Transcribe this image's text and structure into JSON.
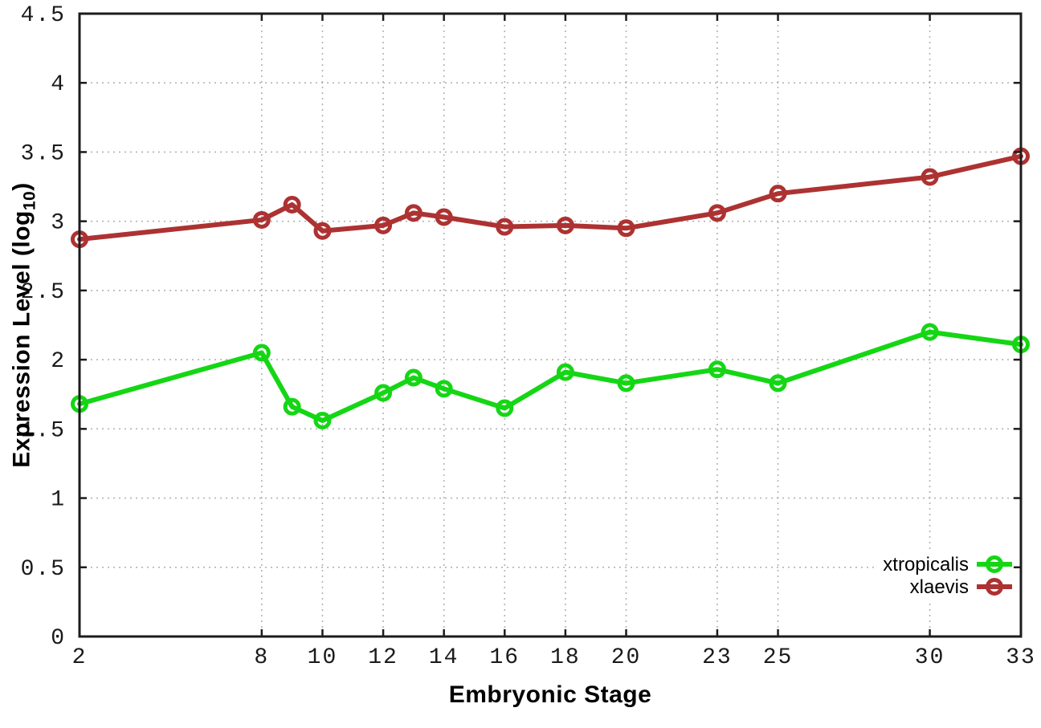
{
  "figure": {
    "colors": {
      "background": "#ffffff",
      "axis": "#1c1c1c",
      "grid": "#b3b3b3",
      "tick_label": "#1a1a1a",
      "legend_text": "#000000"
    }
  },
  "chart_data": {
    "type": "line",
    "title": "",
    "xlabel": "Embryonic Stage",
    "ylabel": "Expression Level (log10)",
    "ylabel_parts": {
      "main": "Expression Level (log",
      "sub": "10",
      "close": ")"
    },
    "x": [
      2,
      8,
      9,
      10,
      12,
      13,
      14,
      16,
      18,
      20,
      23,
      25,
      30,
      33
    ],
    "series": [
      {
        "name": "xtropicalis",
        "color": "#15d615",
        "values": [
          1.68,
          2.05,
          1.66,
          1.56,
          1.76,
          1.87,
          1.79,
          1.65,
          1.91,
          1.83,
          1.93,
          1.83,
          2.2,
          2.11
        ]
      },
      {
        "name": "xlaevis",
        "color": "#ad3232",
        "values": [
          2.87,
          3.01,
          3.12,
          2.93,
          2.97,
          3.06,
          3.03,
          2.96,
          2.97,
          2.95,
          3.06,
          3.2,
          3.32,
          3.47
        ]
      }
    ],
    "xticks": [
      2,
      8,
      10,
      12,
      14,
      16,
      18,
      20,
      23,
      25,
      30,
      33
    ],
    "yticks": [
      0,
      0.5,
      1,
      1.5,
      2,
      2.5,
      3,
      3.5,
      4,
      4.5
    ],
    "xlim": [
      2,
      33
    ],
    "ylim": [
      0,
      4.5
    ],
    "grid": true,
    "marker": "open-circle",
    "legend_position": "bottom-right"
  }
}
